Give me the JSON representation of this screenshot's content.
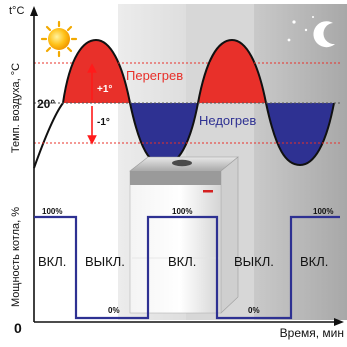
{
  "axes": {
    "temperature_unit": "t°C",
    "temperature_label": "Темп. воздуха, °С",
    "power_label": "Мощность котла, %",
    "origin": "0",
    "time_label": "Время, мин"
  },
  "temperature": {
    "setpoint": "20°",
    "upper_delta": "+1°",
    "lower_delta": "-1°",
    "overheat_label": "Перегрев",
    "underheat_label": "Недогрев"
  },
  "power": {
    "states": [
      "ВКЛ.",
      "ВЫКЛ.",
      "ВКЛ.",
      "ВЫКЛ.",
      "ВКЛ."
    ],
    "percent_labels": [
      "100%",
      "0%",
      "100%",
      "0%",
      "100%"
    ]
  },
  "icons": [
    "sun-icon",
    "moon-stars-icon",
    "boiler-illustration"
  ],
  "colors": {
    "overheat": "#e8302a",
    "underheat": "#2e3192",
    "guide": "#e8302a",
    "accent": "#ff1a1a"
  }
}
